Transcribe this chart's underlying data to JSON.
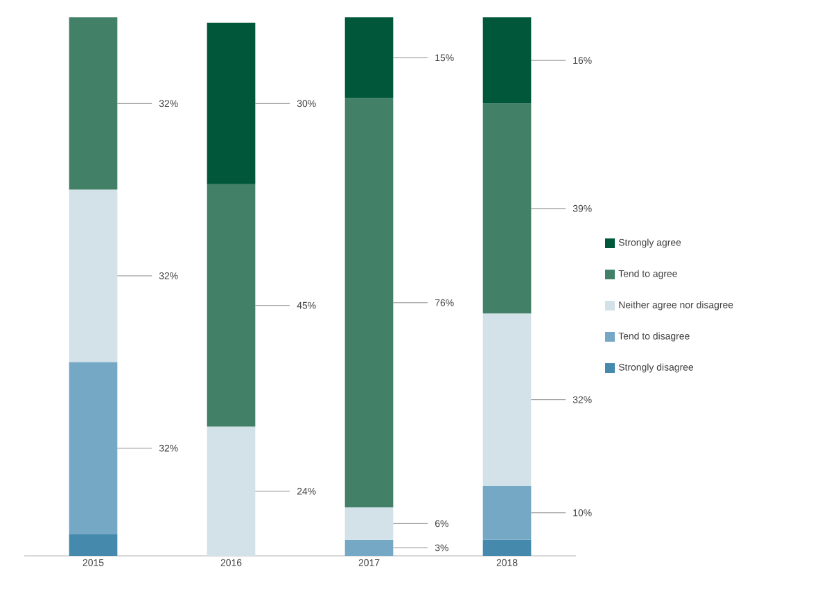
{
  "chart_data": {
    "type": "bar",
    "stacked": true,
    "categories": [
      "2015",
      "2016",
      "2017",
      "2018"
    ],
    "tick_labels": "x",
    "legend": "right",
    "series": [
      {
        "name": "Strongly disagree",
        "color": "#4589ad",
        "values": [
          4,
          null,
          null,
          3
        ],
        "value_labels": [
          null,
          null,
          null,
          null
        ]
      },
      {
        "name": "Tend to disagree",
        "color": "#74a8c5",
        "values": [
          32,
          null,
          3,
          10
        ],
        "value_labels": [
          "32%",
          null,
          "3%",
          "10%"
        ]
      },
      {
        "name": "Neither agree nor disagree",
        "color": "#d3e1e8",
        "values": [
          32,
          24,
          6,
          32
        ],
        "value_labels": [
          "32%",
          "24%",
          "6%",
          "32%"
        ]
      },
      {
        "name": "Tend to agree",
        "color": "#428068",
        "values": [
          32,
          45,
          76,
          39
        ],
        "value_labels": [
          "32%",
          "45%",
          "76%",
          "39%"
        ]
      },
      {
        "name": "Strongly agree",
        "color": "#00573a",
        "values": [
          null,
          30,
          15,
          16
        ],
        "value_labels": [
          null,
          "30%",
          "15%",
          "16%"
        ]
      }
    ]
  }
}
